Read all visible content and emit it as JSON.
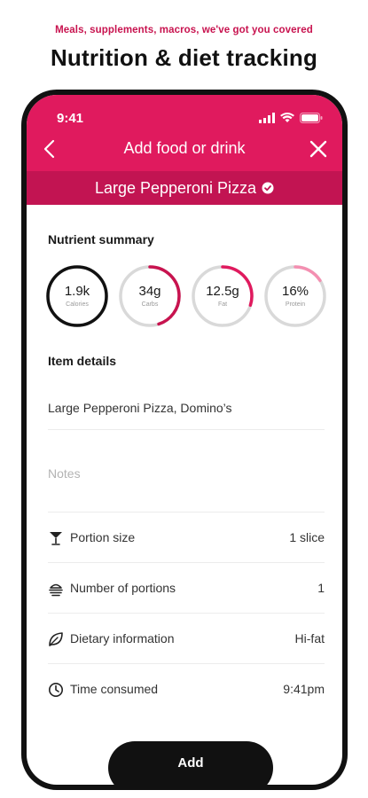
{
  "promo": {
    "tagline": "Meals, supplements, macros, we've got you covered",
    "headline": "Nutrition & diet tracking"
  },
  "status_bar": {
    "time": "9:41"
  },
  "nav": {
    "title": "Add food or drink",
    "back_icon": "chevron-left-icon",
    "close_icon": "close-icon"
  },
  "item_bar": {
    "name": "Large Pepperoni Pizza",
    "verified_icon": "verified-check-icon"
  },
  "nutrient_summary": {
    "title": "Nutrient summary",
    "rings": [
      {
        "value": "1.9k",
        "label": "Calories",
        "progress": 1.0,
        "color": "#111111"
      },
      {
        "value": "34g",
        "label": "Carbs",
        "progress": 0.45,
        "color": "#c8134f"
      },
      {
        "value": "12.5g",
        "label": "Fat",
        "progress": 0.3,
        "color": "#e01a5e"
      },
      {
        "value": "16%",
        "label": "Protein",
        "progress": 0.16,
        "color": "#f48fb1"
      }
    ]
  },
  "item_details": {
    "title": "Item details",
    "description": "Large Pepperoni Pizza, Domino’s",
    "notes_placeholder": "Notes",
    "rows": [
      {
        "icon": "cocktail-glass-icon",
        "label": "Portion size",
        "value": "1 slice"
      },
      {
        "icon": "plate-stack-icon",
        "label": "Number of portions",
        "value": "1"
      },
      {
        "icon": "leaf-icon",
        "label": "Dietary information",
        "value": "Hi-fat"
      },
      {
        "icon": "clock-icon",
        "label": "Time consumed",
        "value": "9:41pm"
      }
    ]
  },
  "actions": {
    "add_label": "Add"
  },
  "colors": {
    "brand_pink": "#e01a5e",
    "brand_pink_dark": "#c21452"
  }
}
